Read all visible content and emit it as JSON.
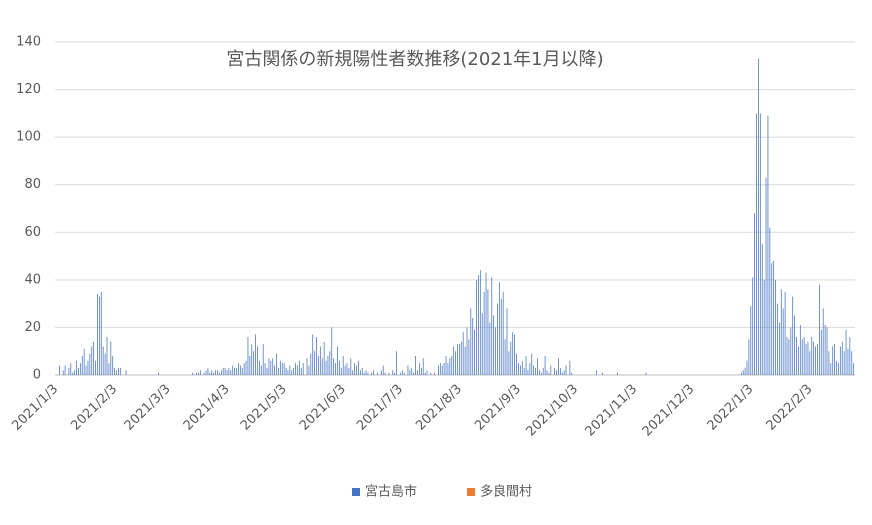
{
  "chart_data": {
    "type": "bar",
    "title": "宮古関係の新規陽性者数推移(2021年1月以降)",
    "categories": [
      "2021/1/3",
      null,
      null,
      null,
      null,
      null,
      null,
      null,
      null,
      null,
      null,
      null,
      null,
      null,
      null,
      null,
      null,
      null,
      null,
      null,
      null,
      null,
      null,
      null,
      null,
      null,
      null,
      null,
      null,
      null,
      null,
      "2021/2/3",
      null,
      null,
      null,
      null,
      null,
      null,
      null,
      null,
      null,
      null,
      null,
      null,
      null,
      null,
      null,
      null,
      null,
      null,
      null,
      null,
      null,
      null,
      null,
      null,
      null,
      null,
      null,
      "2021/3/3",
      null,
      null,
      null,
      null,
      null,
      null,
      null,
      null,
      null,
      null,
      null,
      null,
      null,
      null,
      null,
      null,
      null,
      null,
      null,
      null,
      null,
      null,
      null,
      null,
      null,
      null,
      null,
      null,
      null,
      null,
      "2021/4/3",
      null,
      null,
      null,
      null,
      null,
      null,
      null,
      null,
      null,
      null,
      null,
      null,
      null,
      null,
      null,
      null,
      null,
      null,
      null,
      null,
      null,
      null,
      null,
      null,
      null,
      null,
      null,
      null,
      null,
      "2021/5/3",
      null,
      null,
      null,
      null,
      null,
      null,
      null,
      null,
      null,
      null,
      null,
      null,
      null,
      null,
      null,
      null,
      null,
      null,
      null,
      null,
      null,
      null,
      null,
      null,
      null,
      null,
      null,
      null,
      null,
      null,
      "2021/6/3",
      null,
      null,
      null,
      null,
      null,
      null,
      null,
      null,
      null,
      null,
      null,
      null,
      null,
      null,
      null,
      null,
      null,
      null,
      null,
      null,
      null,
      null,
      null,
      null,
      null,
      null,
      null,
      null,
      null,
      "2021/7/3",
      null,
      null,
      null,
      null,
      null,
      null,
      null,
      null,
      null,
      null,
      null,
      null,
      null,
      null,
      null,
      null,
      null,
      null,
      null,
      null,
      null,
      null,
      null,
      null,
      null,
      null,
      null,
      null,
      null,
      null,
      "2021/8/3",
      null,
      null,
      null,
      null,
      null,
      null,
      null,
      null,
      null,
      null,
      null,
      null,
      null,
      null,
      null,
      null,
      null,
      null,
      null,
      null,
      null,
      null,
      null,
      null,
      null,
      null,
      null,
      null,
      null,
      null,
      "2021/9/3",
      null,
      null,
      null,
      null,
      null,
      null,
      null,
      null,
      null,
      null,
      null,
      null,
      null,
      null,
      null,
      null,
      null,
      null,
      null,
      null,
      null,
      null,
      null,
      null,
      null,
      null,
      null,
      null,
      null,
      "2021/10/3",
      null,
      null,
      null,
      null,
      null,
      null,
      null,
      null,
      null,
      null,
      null,
      null,
      null,
      null,
      null,
      null,
      null,
      null,
      null,
      null,
      null,
      null,
      null,
      null,
      null,
      null,
      null,
      null,
      null,
      null,
      "2021/11/3",
      null,
      null,
      null,
      null,
      null,
      null,
      null,
      null,
      null,
      null,
      null,
      null,
      null,
      null,
      null,
      null,
      null,
      null,
      null,
      null,
      null,
      null,
      null,
      null,
      null,
      null,
      null,
      null,
      null,
      "2021/12/3",
      null,
      null,
      null,
      null,
      null,
      null,
      null,
      null,
      null,
      null,
      null,
      null,
      null,
      null,
      null,
      null,
      null,
      null,
      null,
      null,
      null,
      null,
      null,
      null,
      null,
      null,
      null,
      null,
      null,
      null,
      "2022/1/3",
      null,
      null,
      null,
      null,
      null,
      null,
      null,
      null,
      null,
      null,
      null,
      null,
      null,
      null,
      null,
      null,
      null,
      null,
      null,
      null,
      null,
      null,
      null,
      null,
      null,
      null,
      null,
      null,
      null,
      null,
      "2022/2/3",
      null,
      null,
      null,
      null,
      null,
      null,
      null,
      null,
      null,
      null,
      null,
      null,
      null,
      null,
      null,
      null,
      null,
      null,
      null,
      null,
      null,
      null,
      null
    ],
    "series": [
      {
        "name": "宮古島市",
        "color": "#4472c4",
        "values": [
          0,
          0,
          4,
          0,
          2,
          4,
          0,
          3,
          5,
          1,
          2,
          6,
          3,
          5,
          8,
          11,
          4,
          6,
          9,
          12,
          14,
          6,
          34,
          33,
          35,
          12,
          9,
          16,
          5,
          14,
          8,
          3,
          2,
          3,
          3,
          0,
          0,
          2,
          0,
          0,
          0,
          0,
          0,
          0,
          0,
          0,
          0,
          0,
          0,
          0,
          0,
          0,
          0,
          0,
          1,
          0,
          0,
          0,
          0,
          0,
          0,
          0,
          0,
          0,
          0,
          0,
          0,
          0,
          0,
          0,
          0,
          0,
          1,
          0,
          1,
          1,
          2,
          0,
          1,
          2,
          3,
          1,
          2,
          1,
          2,
          2,
          1,
          2,
          3,
          3,
          2,
          3,
          2,
          4,
          3,
          3,
          5,
          4,
          3,
          5,
          6,
          16,
          8,
          13,
          10,
          17,
          12,
          6,
          4,
          13,
          5,
          3,
          7,
          6,
          7,
          4,
          9,
          3,
          6,
          5,
          5,
          3,
          2,
          4,
          2,
          3,
          5,
          4,
          6,
          3,
          5,
          0,
          7,
          4,
          9,
          17,
          10,
          16,
          8,
          12,
          7,
          14,
          6,
          8,
          10,
          20,
          7,
          5,
          12,
          6,
          3,
          8,
          4,
          5,
          3,
          7,
          2,
          5,
          4,
          6,
          2,
          3,
          1,
          2,
          1,
          0,
          1,
          2,
          0,
          1,
          0,
          2,
          4,
          1,
          0,
          1,
          0,
          2,
          1,
          10,
          0,
          1,
          2,
          1,
          0,
          4,
          2,
          3,
          1,
          8,
          2,
          5,
          3,
          7,
          1,
          2,
          0,
          1,
          0,
          1,
          0,
          4,
          5,
          4,
          5,
          8,
          5,
          7,
          8,
          12,
          10,
          13,
          13,
          14,
          18,
          12,
          20,
          15,
          28,
          24,
          19,
          40,
          42,
          44,
          26,
          35,
          43,
          36,
          22,
          41,
          25,
          20,
          30,
          39,
          32,
          35,
          15,
          28,
          10,
          14,
          18,
          17,
          9,
          5,
          4,
          6,
          3,
          8,
          2,
          5,
          9,
          4,
          3,
          7,
          2,
          1,
          3,
          8,
          2,
          1,
          4,
          0,
          3,
          2,
          7,
          3,
          1,
          2,
          4,
          0,
          6,
          1,
          0,
          0,
          0,
          0,
          0,
          0,
          0,
          0,
          0,
          0,
          0,
          0,
          2,
          0,
          0,
          1,
          0,
          0,
          0,
          0,
          0,
          0,
          0,
          1,
          0,
          0,
          0,
          0,
          0,
          0,
          0,
          0,
          0,
          0,
          0,
          0,
          0,
          0,
          1,
          0,
          0,
          0,
          0,
          0,
          0,
          0,
          0,
          0,
          0,
          0,
          0,
          0,
          0,
          0,
          0,
          0,
          0,
          0,
          0,
          0,
          0,
          0,
          0,
          0,
          0,
          0,
          0,
          0,
          0,
          0,
          0,
          0,
          0,
          0,
          0,
          0,
          0,
          0,
          0,
          0,
          0,
          0,
          0,
          0,
          0,
          0,
          0,
          0,
          1,
          2,
          3,
          6,
          15,
          29,
          41,
          68,
          110,
          133,
          110,
          55,
          40,
          83,
          109,
          62,
          47,
          48,
          40,
          30,
          22,
          36,
          28,
          35,
          16,
          15,
          20,
          33,
          25,
          16,
          12,
          21,
          15,
          16,
          13,
          14,
          10,
          16,
          14,
          12,
          13,
          38,
          19,
          28,
          21,
          20,
          10,
          5,
          12,
          13,
          6,
          5,
          12,
          14,
          10,
          19,
          11,
          16,
          10,
          5
        ]
      },
      {
        "name": "多良間村",
        "color": "#ed7d31",
        "values": [
          0,
          0,
          0,
          0,
          0,
          0,
          0,
          0,
          0,
          0,
          0,
          0,
          0,
          0,
          0,
          0,
          0,
          0,
          0,
          0,
          0,
          0,
          0,
          0,
          0,
          0,
          0,
          0,
          0,
          0,
          0,
          0,
          0,
          0,
          0,
          0,
          0,
          0,
          0,
          0,
          0,
          0,
          0,
          0,
          0,
          0,
          0,
          0,
          0,
          0,
          0,
          0,
          0,
          0,
          0,
          0,
          0,
          0,
          0,
          0,
          0,
          0,
          0,
          0,
          0,
          0,
          0,
          0,
          0,
          0,
          0,
          0,
          0,
          0,
          0,
          0,
          0,
          0,
          0,
          0,
          0,
          0,
          0,
          0,
          0,
          0,
          0,
          0,
          0,
          0,
          0,
          0,
          0,
          0,
          0,
          0,
          0,
          0,
          0,
          0,
          0,
          0,
          0,
          0,
          0,
          0,
          0,
          0,
          0,
          0,
          0,
          0,
          0,
          0,
          0,
          0,
          0,
          0,
          0,
          0,
          0,
          0,
          0,
          0,
          0,
          0,
          0,
          0,
          0,
          0,
          0,
          0,
          0,
          0,
          0,
          0,
          0,
          0,
          0,
          0,
          0,
          0,
          0,
          0,
          0,
          0,
          0,
          0,
          0,
          0,
          0,
          0,
          0,
          0,
          0,
          0,
          0,
          0,
          0,
          0,
          0,
          0,
          0,
          0,
          0,
          0,
          0,
          0,
          0,
          0,
          0,
          0,
          0,
          0,
          0,
          0,
          0,
          0,
          0,
          0,
          0,
          0,
          0,
          0,
          0,
          0,
          0,
          0,
          0,
          0,
          0,
          0,
          0,
          0,
          0,
          0,
          0,
          0,
          0,
          0,
          0,
          0,
          0,
          0,
          0,
          0,
          0,
          0,
          0,
          0,
          0,
          0,
          0,
          0,
          0,
          0,
          0,
          0,
          0,
          0,
          0,
          0,
          0,
          0,
          0,
          0,
          0,
          0,
          0,
          0,
          0,
          0,
          0,
          0,
          0,
          0,
          0,
          0,
          0,
          0,
          0,
          0,
          0,
          0,
          0,
          0,
          0,
          0,
          0,
          0,
          0,
          0,
          0,
          0,
          0,
          0,
          0,
          0,
          0,
          0,
          0,
          0,
          0,
          0,
          0,
          0,
          0,
          0,
          0,
          0,
          0,
          0,
          0,
          0,
          0,
          0,
          0,
          0,
          0,
          0,
          0,
          0,
          0,
          0,
          0,
          0,
          0,
          0,
          0,
          0,
          0,
          0,
          0,
          0,
          0,
          0,
          0,
          0,
          0,
          0,
          0,
          0,
          0,
          0,
          0,
          0,
          0,
          0,
          0,
          0,
          0,
          0,
          0,
          0,
          0,
          0,
          0,
          0,
          0,
          0,
          0,
          0,
          0,
          0,
          0,
          0,
          0,
          0,
          0,
          0,
          0,
          0,
          0,
          0,
          0,
          0,
          0,
          0,
          0,
          0,
          0,
          0,
          0,
          0,
          0,
          0,
          0,
          0,
          0,
          0,
          0,
          0,
          0,
          0,
          0,
          0,
          0,
          0,
          0,
          0,
          0,
          0,
          0,
          0,
          0,
          0,
          0,
          0,
          0,
          0,
          0,
          0,
          0,
          0,
          0,
          0,
          0,
          0,
          0,
          0,
          0,
          0,
          0,
          0,
          0,
          0,
          0,
          0,
          0,
          0,
          0,
          0,
          0,
          0,
          0,
          0,
          0,
          0,
          0,
          0,
          0,
          0,
          0,
          0,
          0,
          0,
          0,
          0,
          0,
          0,
          0,
          0,
          0,
          0,
          0,
          0,
          0,
          0,
          0,
          0
        ]
      }
    ],
    "ylim": [
      0,
      140
    ],
    "yticks": [
      0,
      20,
      40,
      60,
      80,
      100,
      120,
      140
    ],
    "grid": true
  }
}
